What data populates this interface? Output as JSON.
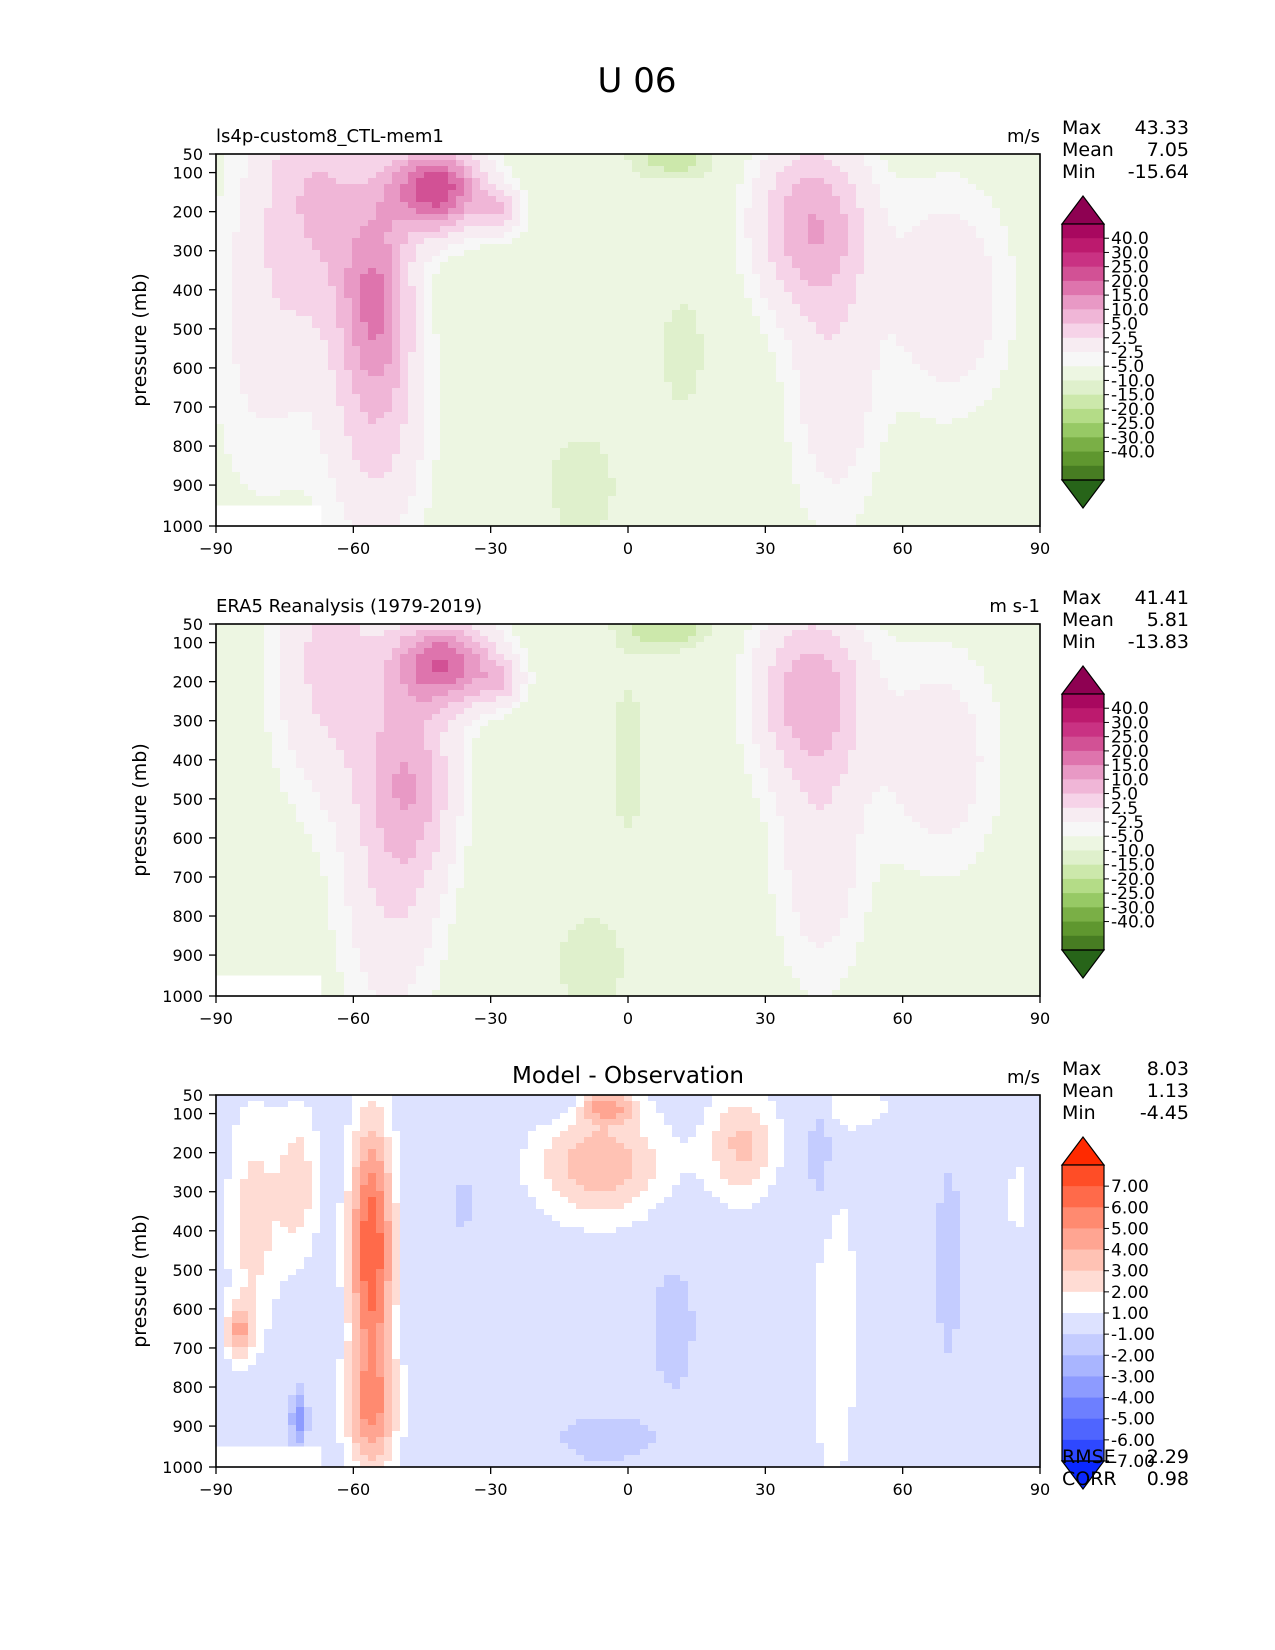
{
  "figure_title": "U 06",
  "chart_data": [
    {
      "type": "contour",
      "panel": "model",
      "title": "",
      "left_title": "ls4p-custom8_CTL-mem1",
      "units": "m/s",
      "ylabel": "pressure (mb)",
      "xlabel": "",
      "xlim": [
        -90,
        90
      ],
      "ylim": [
        1000,
        50
      ],
      "x_ticks": [
        "−90",
        "−60",
        "−30",
        "0",
        "30",
        "60",
        "90"
      ],
      "y_ticks": [
        "50",
        "100",
        "200",
        "300",
        "400",
        "500",
        "600",
        "700",
        "800",
        "900",
        "1000"
      ],
      "stats": [
        {
          "label": "Max",
          "value": "43.33"
        },
        {
          "label": "Mean",
          "value": "7.05"
        },
        {
          "label": "Min",
          "value": "-15.64"
        }
      ],
      "levels": [
        -40,
        -30,
        -25,
        -20,
        -15,
        -10,
        -5,
        -2.5,
        2.5,
        5,
        10,
        15,
        20,
        25,
        30,
        40
      ],
      "colorbar_labels": [
        "40.0",
        "30.0",
        "25.0",
        "20.0",
        "15.0",
        "10.0",
        "5.0",
        "2.5",
        "-2.5",
        "-5.0",
        "-10.0",
        "-15.0",
        "-20.0",
        "-25.0",
        "-30.0",
        "-40.0"
      ],
      "colorbar_colors": [
        "#8e0152",
        "#a8085f",
        "#bc1a6e",
        "#c93283",
        "#d25195",
        "#de74ad",
        "#e899c5",
        "#f0b6d7",
        "#f6d3e8",
        "#f7ecf2",
        "#f7f7f7",
        "#edf6e2",
        "#dff0cc",
        "#cce8ab",
        "#b4dc87",
        "#97c965",
        "#7aaf46",
        "#5f972f",
        "#477d22",
        "#276419"
      ],
      "features": [
        {
          "lat": -42,
          "p": 140,
          "v": 34,
          "slat": 10,
          "sp": 110
        },
        {
          "lat": -28,
          "p": 200,
          "v": 12,
          "slat": 5,
          "sp": 60
        },
        {
          "lat": -55,
          "p": 420,
          "v": 22,
          "slat": 8,
          "sp": 260
        },
        {
          "lat": -55,
          "p": 780,
          "v": 10,
          "slat": 11,
          "sp": 300
        },
        {
          "lat": -68,
          "p": 150,
          "v": 14,
          "slat": 12,
          "sp": 350
        },
        {
          "lat": -80,
          "p": 500,
          "v": 6,
          "slat": 12,
          "sp": 450
        },
        {
          "lat": 40,
          "p": 230,
          "v": 19,
          "slat": 12,
          "sp": 220
        },
        {
          "lat": 45,
          "p": 650,
          "v": 8,
          "slat": 10,
          "sp": 350
        },
        {
          "lat": 70,
          "p": 420,
          "v": 9,
          "slat": 13,
          "sp": 280
        },
        {
          "lat": 10,
          "p": 60,
          "v": -7,
          "slat": 10,
          "sp": 60
        },
        {
          "lat": -10,
          "p": 900,
          "v": -5,
          "slat": 8,
          "sp": 140
        },
        {
          "lat": 12,
          "p": 560,
          "v": -4,
          "slat": 6,
          "sp": 180
        }
      ]
    },
    {
      "type": "contour",
      "panel": "observation",
      "title": "",
      "left_title": "ERA5 Reanalysis (1979-2019)",
      "units": "m s-1",
      "ylabel": "pressure (mb)",
      "xlabel": "",
      "xlim": [
        -90,
        90
      ],
      "ylim": [
        1000,
        50
      ],
      "x_ticks": [
        "−90",
        "−60",
        "−30",
        "0",
        "30",
        "60",
        "90"
      ],
      "y_ticks": [
        "50",
        "100",
        "200",
        "300",
        "400",
        "500",
        "600",
        "700",
        "800",
        "900",
        "1000"
      ],
      "stats": [
        {
          "label": "Max",
          "value": "41.41"
        },
        {
          "label": "Mean",
          "value": "5.81"
        },
        {
          "label": "Min",
          "value": "-13.83"
        }
      ],
      "levels": [
        -40,
        -30,
        -25,
        -20,
        -15,
        -10,
        -5,
        -2.5,
        2.5,
        5,
        10,
        15,
        20,
        25,
        30,
        40
      ],
      "colorbar_labels": [
        "40.0",
        "30.0",
        "25.0",
        "20.0",
        "15.0",
        "10.0",
        "5.0",
        "2.5",
        "-2.5",
        "-5.0",
        "-10.0",
        "-15.0",
        "-20.0",
        "-25.0",
        "-30.0",
        "-40.0"
      ],
      "colorbar_colors": [
        "#8e0152",
        "#a8085f",
        "#bc1a6e",
        "#c93283",
        "#d25195",
        "#de74ad",
        "#e899c5",
        "#f0b6d7",
        "#f6d3e8",
        "#f7ecf2",
        "#f7f7f7",
        "#edf6e2",
        "#dff0cc",
        "#cce8ab",
        "#b4dc87",
        "#97c965",
        "#7aaf46",
        "#5f972f",
        "#477d22",
        "#276419"
      ],
      "features": [
        {
          "lat": -40,
          "p": 150,
          "v": 28,
          "slat": 11,
          "sp": 110
        },
        {
          "lat": -28,
          "p": 200,
          "v": 10,
          "slat": 5,
          "sp": 60
        },
        {
          "lat": -48,
          "p": 450,
          "v": 18,
          "slat": 10,
          "sp": 250
        },
        {
          "lat": -52,
          "p": 800,
          "v": 8,
          "slat": 11,
          "sp": 300
        },
        {
          "lat": -65,
          "p": 150,
          "v": 12,
          "slat": 12,
          "sp": 350
        },
        {
          "lat": 40,
          "p": 230,
          "v": 18,
          "slat": 12,
          "sp": 220
        },
        {
          "lat": 42,
          "p": 650,
          "v": 8,
          "slat": 10,
          "sp": 330
        },
        {
          "lat": 68,
          "p": 400,
          "v": 8,
          "slat": 13,
          "sp": 280
        },
        {
          "lat": 8,
          "p": 60,
          "v": -8,
          "slat": 10,
          "sp": 60
        },
        {
          "lat": 0,
          "p": 400,
          "v": -4,
          "slat": 5,
          "sp": 250
        },
        {
          "lat": -8,
          "p": 920,
          "v": -5,
          "slat": 8,
          "sp": 130
        }
      ]
    },
    {
      "type": "contour",
      "panel": "difference",
      "title": "Model - Observation",
      "left_title": "",
      "units": "m/s",
      "ylabel": "pressure (mb)",
      "xlabel": "",
      "xlim": [
        -90,
        90
      ],
      "ylim": [
        1000,
        50
      ],
      "x_ticks": [
        "−90",
        "−60",
        "−30",
        "0",
        "30",
        "60",
        "90"
      ],
      "y_ticks": [
        "50",
        "100",
        "200",
        "300",
        "400",
        "500",
        "600",
        "700",
        "800",
        "900",
        "1000"
      ],
      "stats": [
        {
          "label": "Max",
          "value": "8.03"
        },
        {
          "label": "Mean",
          "value": "1.13"
        },
        {
          "label": "Min",
          "value": "-4.45"
        }
      ],
      "metrics": [
        {
          "label": "RMSE",
          "value": "2.29"
        },
        {
          "label": "CORR",
          "value": "0.98"
        }
      ],
      "levels": [
        -7,
        -6,
        -5,
        -4,
        -3,
        -2,
        -1,
        1,
        2,
        3,
        4,
        5,
        6,
        7
      ],
      "colorbar_labels": [
        "7.00",
        "6.00",
        "5.00",
        "4.00",
        "3.00",
        "2.00",
        "1.00",
        "-1.00",
        "-2.00",
        "-3.00",
        "-4.00",
        "-5.00",
        "-6.00",
        "-7.00"
      ],
      "colorbar_colors": [
        "#ff2a00",
        "#ff4d26",
        "#ff6a4a",
        "#ff8a70",
        "#ffa592",
        "#ffc2b4",
        "#ffdcd4",
        "#ffffff",
        "#dde2ff",
        "#c4ccff",
        "#a9b5ff",
        "#8d9bff",
        "#6d7fff",
        "#4f65ff",
        "#2e48ff",
        "#0a28ff"
      ],
      "features": [
        {
          "lat": -56,
          "p": 450,
          "v": 7,
          "slat": 5,
          "sp": 340
        },
        {
          "lat": -56,
          "p": 870,
          "v": 4,
          "slat": 6,
          "sp": 160
        },
        {
          "lat": -82,
          "p": 380,
          "v": 2.5,
          "slat": 6,
          "sp": 330
        },
        {
          "lat": -85,
          "p": 660,
          "v": 3.5,
          "slat": 3,
          "sp": 70
        },
        {
          "lat": -72,
          "p": 280,
          "v": 2.5,
          "slat": 5,
          "sp": 220
        },
        {
          "lat": -6,
          "p": 230,
          "v": 3.8,
          "slat": 15,
          "sp": 150
        },
        {
          "lat": 25,
          "p": 180,
          "v": 3.2,
          "slat": 8,
          "sp": 150
        },
        {
          "lat": -5,
          "p": 80,
          "v": 3.5,
          "slat": 7,
          "sp": 40
        },
        {
          "lat": 45,
          "p": 650,
          "v": 1.8,
          "slat": 6,
          "sp": 500
        },
        {
          "lat": 85,
          "p": 320,
          "v": 1.8,
          "slat": 2,
          "sp": 110
        },
        {
          "lat": 50,
          "p": 80,
          "v": 1.5,
          "slat": 10,
          "sp": 60
        },
        {
          "lat": -72,
          "p": 880,
          "v": -3.5,
          "slat": 2,
          "sp": 80
        },
        {
          "lat": 42,
          "p": 200,
          "v": -2.6,
          "slat": 3,
          "sp": 180
        },
        {
          "lat": 70,
          "p": 480,
          "v": -2.0,
          "slat": 3,
          "sp": 280
        },
        {
          "lat": 10,
          "p": 650,
          "v": -1.6,
          "slat": 6,
          "sp": 220
        },
        {
          "lat": -5,
          "p": 930,
          "v": -1.8,
          "slat": 12,
          "sp": 70
        },
        {
          "lat": -15,
          "p": 70,
          "v": -2.0,
          "slat": 6,
          "sp": 40
        },
        {
          "lat": -36,
          "p": 330,
          "v": -1.4,
          "slat": 3,
          "sp": 110
        }
      ]
    }
  ]
}
